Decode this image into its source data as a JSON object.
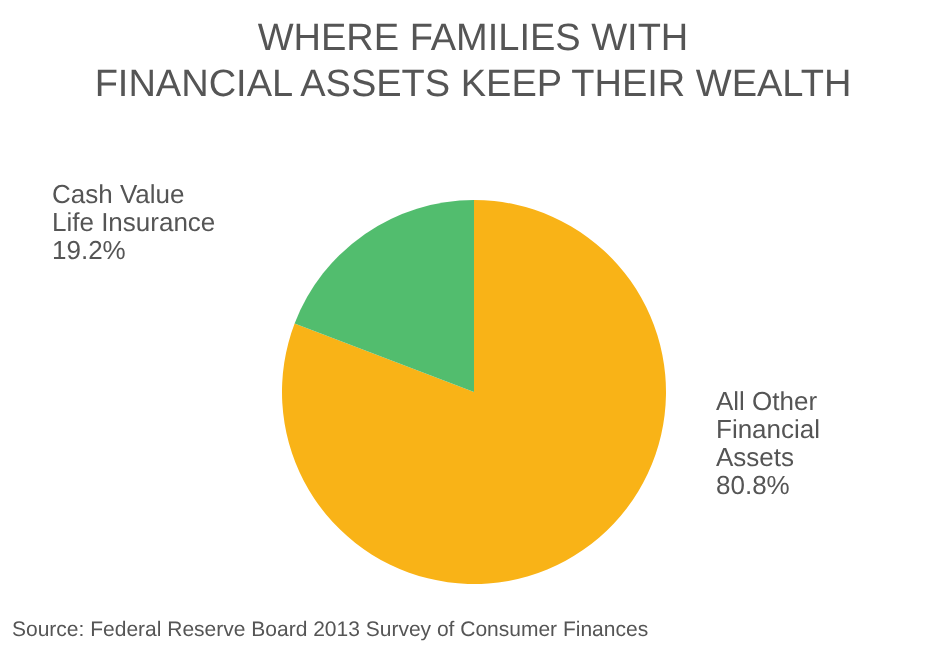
{
  "chart_data": {
    "type": "pie",
    "title": "WHERE FAMILIES WITH\nFINANCIAL ASSETS KEEP THEIR WEALTH",
    "categories": [
      "All Other Financial Assets",
      "Cash Value Life Insurance"
    ],
    "values": [
      80.8,
      19.2
    ],
    "colors": [
      "#f9b317",
      "#52bd6e"
    ],
    "value_labels": [
      "80.8%",
      "19.2%"
    ],
    "annotations": [
      "Source: Federal Reserve Board 2013 Survey of Consumer Finances"
    ]
  }
}
